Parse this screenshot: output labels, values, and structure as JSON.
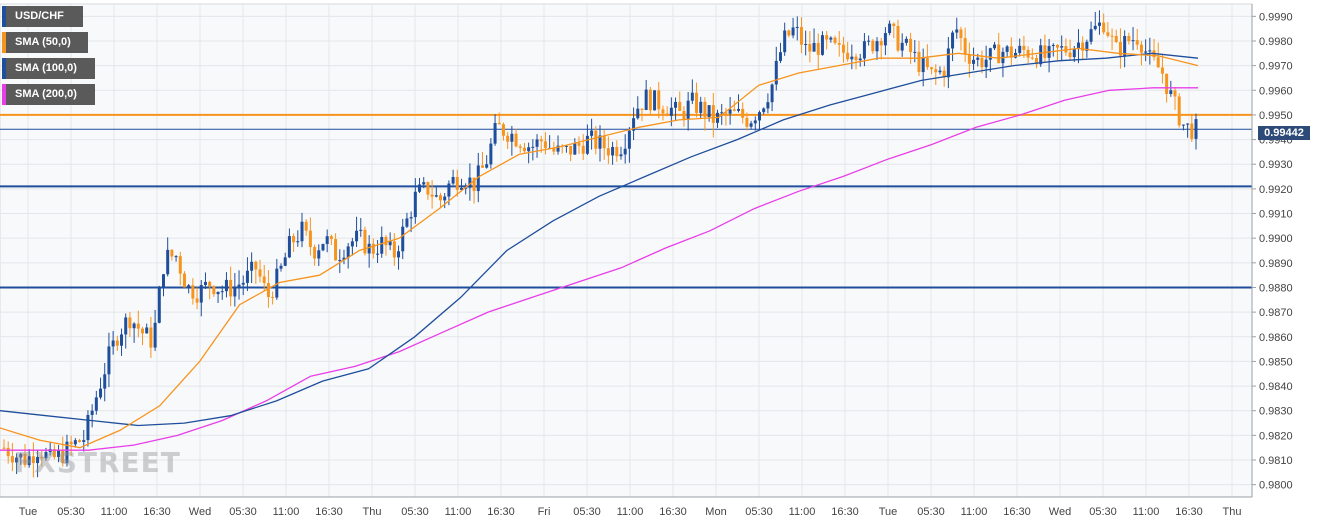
{
  "chart_data": {
    "type": "candlestick",
    "symbol": "USD/CHF",
    "current_price": "0.99442",
    "ylim": [
      0.9795,
      0.9995
    ],
    "y_ticks": [
      "0.9990",
      "0.9980",
      "0.9970",
      "0.9960",
      "0.9950",
      "0.9940",
      "0.9930",
      "0.9920",
      "0.9910",
      "0.9900",
      "0.9890",
      "0.9880",
      "0.9870",
      "0.9860",
      "0.9850",
      "0.9840",
      "0.9830",
      "0.9820",
      "0.9810",
      "0.9800"
    ],
    "x_ticks": [
      "Tue",
      "05:30",
      "11:00",
      "16:30",
      "Wed",
      "05:30",
      "11:00",
      "16:30",
      "Thu",
      "05:30",
      "11:00",
      "16:30",
      "Fri",
      "05:30",
      "11:00",
      "16:30",
      "Mon",
      "05:30",
      "11:00",
      "16:30",
      "Tue",
      "05:30",
      "11:00",
      "16:30",
      "Wed",
      "05:30",
      "11:00",
      "16:30",
      "Thu"
    ],
    "legend": [
      {
        "label": "USD/CHF",
        "color": "#1f4e9c"
      },
      {
        "label": "SMA (50,0)",
        "color": "#f7941d"
      },
      {
        "label": "SMA (100,0)",
        "color": "#1f4e9c"
      },
      {
        "label": "SMA (200,0)",
        "color": "#e83ee8"
      }
    ],
    "horizontal_levels": [
      {
        "value": 0.995,
        "color": "#f7941d"
      },
      {
        "value": 0.99442,
        "color": "#1f4e9c"
      },
      {
        "value": 0.9921,
        "color": "#1f4e9c"
      },
      {
        "value": 0.988,
        "color": "#1f4e9c"
      }
    ],
    "price_path": [
      0.9815,
      0.9812,
      0.981,
      0.9815,
      0.981,
      0.9812,
      0.9816,
      0.9819,
      0.9835,
      0.985,
      0.9862,
      0.9868,
      0.9862,
      0.9858,
      0.9892,
      0.9893,
      0.988,
      0.9878,
      0.9882,
      0.9879,
      0.988,
      0.9883,
      0.9888,
      0.9876,
      0.9885,
      0.9898,
      0.9903,
      0.9895,
      0.99,
      0.9893,
      0.9898,
      0.99,
      0.9895,
      0.9898,
      0.9893,
      0.9905,
      0.9918,
      0.992,
      0.9915,
      0.9923,
      0.9925,
      0.9922,
      0.993,
      0.9945,
      0.9943,
      0.994,
      0.9937,
      0.994,
      0.9935,
      0.9935,
      0.9937,
      0.994,
      0.9938,
      0.9936,
      0.9938,
      0.9952,
      0.9957,
      0.9955,
      0.9953,
      0.995,
      0.9955,
      0.9952,
      0.9948,
      0.995,
      0.995,
      0.9948,
      0.9953,
      0.9962,
      0.998,
      0.9985,
      0.9976,
      0.9978,
      0.9978,
      0.9975,
      0.9977,
      0.9976,
      0.998,
      0.9985,
      0.998,
      0.9976,
      0.997,
      0.9966,
      0.9968,
      0.9986,
      0.9975,
      0.9972,
      0.9973,
      0.9976,
      0.9975,
      0.9976,
      0.9975,
      0.9973,
      0.9976,
      0.9977,
      0.998,
      0.9984,
      0.9988,
      0.9976,
      0.998,
      0.9982,
      0.9972,
      0.9968,
      0.9955,
      0.9945,
      0.9944
    ],
    "sma50": [
      0.9823,
      0.9818,
      0.9815,
      0.9822,
      0.9832,
      0.985,
      0.9873,
      0.9882,
      0.9885,
      0.9895,
      0.99,
      0.9912,
      0.9925,
      0.9934,
      0.9937,
      0.9941,
      0.9945,
      0.9948,
      0.9949,
      0.9962,
      0.9967,
      0.997,
      0.9973,
      0.9973,
      0.9975,
      0.9973,
      0.9975,
      0.9977,
      0.9975,
      0.9974,
      0.997
    ],
    "sma100": [
      0.983,
      0.9828,
      0.9826,
      0.9824,
      0.9825,
      0.9828,
      0.9834,
      0.9842,
      0.9847,
      0.986,
      0.9876,
      0.9895,
      0.9907,
      0.9917,
      0.9925,
      0.9933,
      0.994,
      0.9948,
      0.9954,
      0.9959,
      0.9964,
      0.9967,
      0.997,
      0.9972,
      0.9973,
      0.9975,
      0.9973
    ],
    "sma200": [
      0.9814,
      0.9814,
      0.9814,
      0.9816,
      0.982,
      0.9826,
      0.9834,
      0.9844,
      0.9848,
      0.9854,
      0.9862,
      0.987,
      0.9876,
      0.9882,
      0.9888,
      0.9896,
      0.9903,
      0.9912,
      0.9919,
      0.9925,
      0.9932,
      0.9938,
      0.9945,
      0.995,
      0.9956,
      0.996,
      0.9961,
      0.9961
    ]
  },
  "watermark": "FXSTREET"
}
